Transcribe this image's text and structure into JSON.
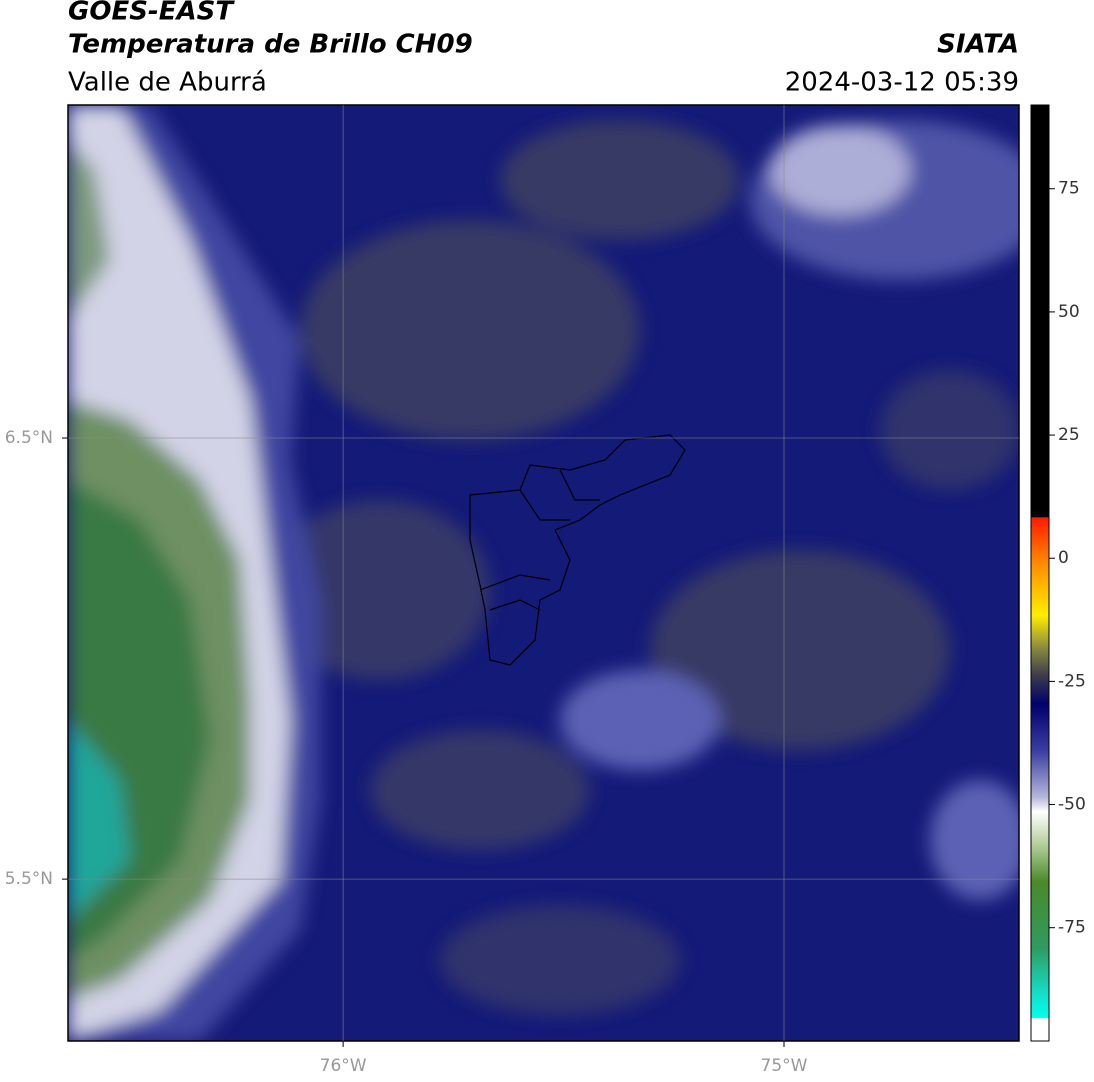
{
  "header": {
    "title": "GOES-EAST",
    "subtitle": "Temperatura de Brillo CH09",
    "region": "Valle de Aburrá",
    "source": "SIATA",
    "datetime": "2024-03-12 05:39"
  },
  "map": {
    "lonlim": [
      -76.624,
      -74.467
    ],
    "latlim": [
      5.133,
      7.255
    ],
    "lon_ticks": [
      {
        "value": -76,
        "label": "76°W"
      },
      {
        "value": -75,
        "label": "75°W"
      }
    ],
    "lat_ticks": [
      {
        "value": 6.5,
        "label": "6.5°N"
      },
      {
        "value": 5.5,
        "label": "5.5°N"
      }
    ]
  },
  "colorbar": {
    "lim": [
      -98,
      92
    ],
    "ticks": [
      75,
      50,
      25,
      0,
      -25,
      -50,
      -75
    ]
  }
}
